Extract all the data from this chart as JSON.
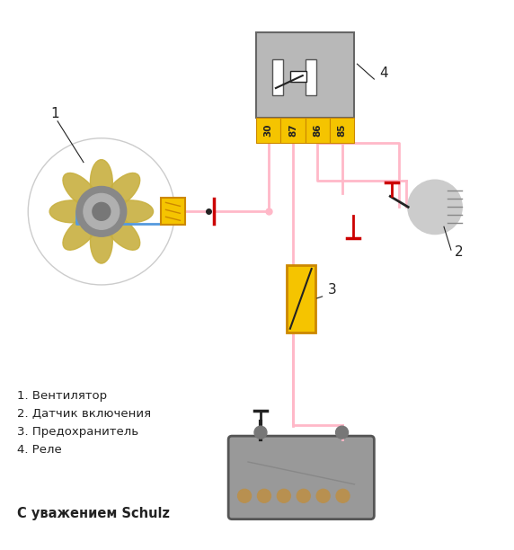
{
  "bg_color": "#ffffff",
  "pink": "#FFB8C8",
  "blue": "#5599DD",
  "black": "#222222",
  "red": "#CC0000",
  "dark_gray": "#888888",
  "mid_gray": "#aaaaaa",
  "light_gray": "#cccccc",
  "relay_gray": "#b8b8b8",
  "yellow": "#F5C400",
  "blade_color": "#C8B040",
  "motor_outer": "#888888",
  "motor_inner": "#b0b0b0",
  "battery_gray": "#999999",
  "cell_color": "#b89050",
  "cell_edge": "#806020",
  "text_legend": [
    "1. Вентилятор",
    "2. Датчик включения",
    "3. Предохранитель",
    "4. Реле"
  ],
  "text_footer": "С уважением Schulz",
  "relay_pins": [
    "30",
    "87",
    "86",
    "85"
  ],
  "figsize": [
    5.72,
    6.12
  ],
  "dpi": 100
}
